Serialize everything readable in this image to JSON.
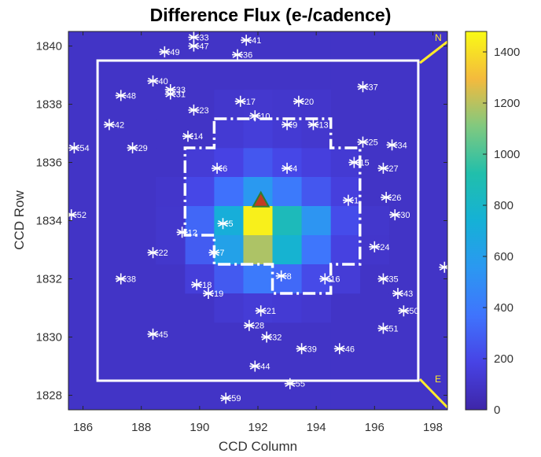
{
  "chart_data": {
    "type": "heatmap",
    "title": "Difference Flux (e-/cadence)",
    "xlabel": "CCD Column",
    "ylabel": "CCD Row",
    "xlim": [
      185.5,
      198.5
    ],
    "ylim": [
      1827.5,
      1840.5
    ],
    "xticks": [
      186,
      188,
      190,
      192,
      194,
      196,
      198
    ],
    "yticks": [
      1828,
      1830,
      1832,
      1834,
      1836,
      1838,
      1840
    ],
    "colorbar": {
      "min": 0,
      "max": 1480,
      "ticks": [
        0,
        200,
        400,
        600,
        800,
        1000,
        1200,
        1400
      ]
    },
    "background_flux": 90,
    "pixels": [
      {
        "col": 190,
        "row": 1836,
        "v": 140
      },
      {
        "col": 191,
        "row": 1836,
        "v": 180
      },
      {
        "col": 192,
        "row": 1836,
        "v": 260
      },
      {
        "col": 193,
        "row": 1836,
        "v": 200
      },
      {
        "col": 194,
        "row": 1836,
        "v": 160
      },
      {
        "col": 195,
        "row": 1836,
        "v": 130
      },
      {
        "col": 190,
        "row": 1835,
        "v": 200
      },
      {
        "col": 191,
        "row": 1835,
        "v": 360
      },
      {
        "col": 192,
        "row": 1835,
        "v": 560
      },
      {
        "col": 193,
        "row": 1835,
        "v": 400
      },
      {
        "col": 194,
        "row": 1835,
        "v": 260
      },
      {
        "col": 195,
        "row": 1835,
        "v": 160
      },
      {
        "col": 190,
        "row": 1834,
        "v": 320
      },
      {
        "col": 191,
        "row": 1834,
        "v": 720
      },
      {
        "col": 192,
        "row": 1834,
        "v": 1450
      },
      {
        "col": 193,
        "row": 1834,
        "v": 860
      },
      {
        "col": 194,
        "row": 1834,
        "v": 540
      },
      {
        "col": 195,
        "row": 1834,
        "v": 220
      },
      {
        "col": 190,
        "row": 1833,
        "v": 280
      },
      {
        "col": 191,
        "row": 1833,
        "v": 620
      },
      {
        "col": 192,
        "row": 1833,
        "v": 1180
      },
      {
        "col": 193,
        "row": 1833,
        "v": 760
      },
      {
        "col": 194,
        "row": 1833,
        "v": 380
      },
      {
        "col": 195,
        "row": 1833,
        "v": 170
      },
      {
        "col": 190,
        "row": 1832,
        "v": 150
      },
      {
        "col": 191,
        "row": 1832,
        "v": 270
      },
      {
        "col": 192,
        "row": 1832,
        "v": 400
      },
      {
        "col": 193,
        "row": 1832,
        "v": 330
      },
      {
        "col": 194,
        "row": 1832,
        "v": 210
      },
      {
        "col": 195,
        "row": 1832,
        "v": 140
      },
      {
        "col": 191,
        "row": 1837,
        "v": 130
      },
      {
        "col": 192,
        "row": 1837,
        "v": 150
      },
      {
        "col": 193,
        "row": 1837,
        "v": 130
      },
      {
        "col": 194,
        "row": 1837,
        "v": 115
      },
      {
        "col": 191,
        "row": 1838,
        "v": 110
      },
      {
        "col": 192,
        "row": 1838,
        "v": 115
      },
      {
        "col": 193,
        "row": 1838,
        "v": 110
      },
      {
        "col": 194,
        "row": 1838,
        "v": 105
      },
      {
        "col": 191,
        "row": 1831,
        "v": 120
      },
      {
        "col": 192,
        "row": 1831,
        "v": 140
      },
      {
        "col": 193,
        "row": 1831,
        "v": 130
      },
      {
        "col": 194,
        "row": 1831,
        "v": 115
      },
      {
        "col": 189,
        "row": 1834,
        "v": 110
      },
      {
        "col": 189,
        "row": 1833,
        "v": 110
      },
      {
        "col": 189,
        "row": 1835,
        "v": 105
      },
      {
        "col": 196,
        "row": 1834,
        "v": 110
      },
      {
        "col": 196,
        "row": 1833,
        "v": 105
      }
    ],
    "stars": [
      {
        "label": "33",
        "x": 189.8,
        "y": 1840.3
      },
      {
        "label": "41",
        "x": 191.6,
        "y": 1840.2
      },
      {
        "label": "47",
        "x": 189.8,
        "y": 1840.0
      },
      {
        "label": "49",
        "x": 188.8,
        "y": 1839.8
      },
      {
        "label": "36",
        "x": 191.3,
        "y": 1839.7
      },
      {
        "label": "40",
        "x": 188.4,
        "y": 1838.8
      },
      {
        "label": "33",
        "x": 189.0,
        "y": 1838.5
      },
      {
        "label": "31",
        "x": 189.0,
        "y": 1838.35
      },
      {
        "label": "48",
        "x": 187.3,
        "y": 1838.3
      },
      {
        "label": "37",
        "x": 195.6,
        "y": 1838.6
      },
      {
        "label": "17",
        "x": 191.4,
        "y": 1838.1
      },
      {
        "label": "20",
        "x": 193.4,
        "y": 1838.1
      },
      {
        "label": "23",
        "x": 189.8,
        "y": 1837.8
      },
      {
        "label": "10",
        "x": 191.9,
        "y": 1837.6
      },
      {
        "label": "9",
        "x": 193.0,
        "y": 1837.3
      },
      {
        "label": "13",
        "x": 193.9,
        "y": 1837.3
      },
      {
        "label": "42",
        "x": 186.9,
        "y": 1837.3
      },
      {
        "label": "14",
        "x": 189.6,
        "y": 1836.9
      },
      {
        "label": "25",
        "x": 195.6,
        "y": 1836.7
      },
      {
        "label": "34",
        "x": 196.6,
        "y": 1836.6
      },
      {
        "label": "54",
        "x": 185.7,
        "y": 1836.5
      },
      {
        "label": "29",
        "x": 187.7,
        "y": 1836.5
      },
      {
        "label": "15",
        "x": 195.3,
        "y": 1836.0
      },
      {
        "label": "27",
        "x": 196.3,
        "y": 1835.8
      },
      {
        "label": "6",
        "x": 190.6,
        "y": 1835.8
      },
      {
        "label": "4",
        "x": 193.0,
        "y": 1835.8
      },
      {
        "label": "26",
        "x": 196.4,
        "y": 1834.8
      },
      {
        "label": "1",
        "x": 195.1,
        "y": 1834.7
      },
      {
        "label": "30",
        "x": 196.7,
        "y": 1834.2
      },
      {
        "label": "52",
        "x": 185.6,
        "y": 1834.2
      },
      {
        "label": "5",
        "x": 190.8,
        "y": 1833.9
      },
      {
        "label": "12",
        "x": 189.4,
        "y": 1833.6
      },
      {
        "label": "24",
        "x": 196.0,
        "y": 1833.1
      },
      {
        "label": "22",
        "x": 188.4,
        "y": 1832.9
      },
      {
        "label": "7",
        "x": 190.5,
        "y": 1832.9
      },
      {
        "label": "38",
        "x": 187.3,
        "y": 1832.0
      },
      {
        "label": "8",
        "x": 192.8,
        "y": 1832.1
      },
      {
        "label": "16",
        "x": 194.3,
        "y": 1832.0
      },
      {
        "label": "35",
        "x": 196.3,
        "y": 1832.0
      },
      {
        "label": "18",
        "x": 189.9,
        "y": 1831.8
      },
      {
        "label": "19",
        "x": 190.3,
        "y": 1831.5
      },
      {
        "label": "43",
        "x": 196.8,
        "y": 1831.5
      },
      {
        "label": "50",
        "x": 197.0,
        "y": 1830.9
      },
      {
        "label": "21",
        "x": 192.1,
        "y": 1830.9
      },
      {
        "label": "28",
        "x": 191.7,
        "y": 1830.4
      },
      {
        "label": "51",
        "x": 196.3,
        "y": 1830.3
      },
      {
        "label": "45",
        "x": 188.4,
        "y": 1830.1
      },
      {
        "label": "32",
        "x": 192.3,
        "y": 1830.0
      },
      {
        "label": "39",
        "x": 193.5,
        "y": 1829.6
      },
      {
        "label": "46",
        "x": 194.8,
        "y": 1829.6
      },
      {
        "label": "44",
        "x": 191.9,
        "y": 1829.0
      },
      {
        "label": "55",
        "x": 193.1,
        "y": 1828.4
      },
      {
        "label": "59",
        "x": 190.9,
        "y": 1827.9
      },
      {
        "label": "",
        "x": 198.4,
        "y": 1832.4
      }
    ],
    "target_marker": {
      "x": 192.1,
      "y": 1834.7
    },
    "aperture_outer": {
      "x0": 186.5,
      "x1": 197.5,
      "y0": 1828.5,
      "y1": 1839.5
    },
    "compass": {
      "north_label": "N",
      "east_label": "E"
    }
  }
}
